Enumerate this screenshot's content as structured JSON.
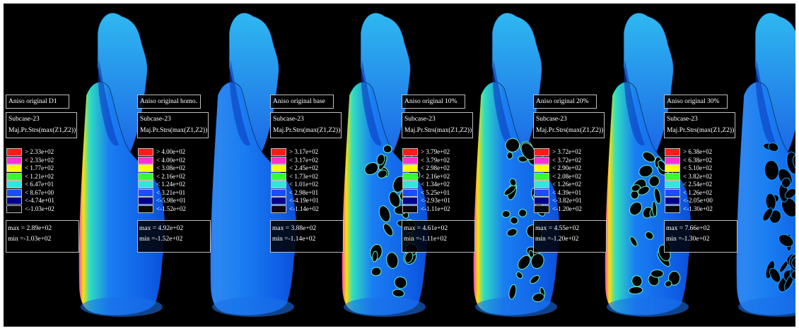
{
  "swatch_colors": [
    "#ff1a1a",
    "#ff33cc",
    "#ffff00",
    "#33ff33",
    "#33e6d9",
    "#1a4dff",
    "#00008c",
    "#0a0a0a"
  ],
  "panels": [
    {
      "title": "Aniso original D1",
      "subcase": "Subcase-23",
      "quantity": "Maj.Pr.Strs(max(Z1,Z2))",
      "legend": [
        "> 2.33e+02",
        "< 2.33e+02",
        "< 1.77e+02",
        "< 1.21e+02",
        "< 6.47e+01",
        "< 8.67e+00",
        "<-4.74e+01",
        "<-1.03e+02"
      ],
      "max": "max = 2.89e+02",
      "min": "min =-1.03e+02"
    },
    {
      "title": "Aniso original homo.",
      "subcase": "Subcase-23",
      "quantity": "Maj.Pr.Strs(max(Z1,Z2))",
      "legend": [
        "> 4.00e+02",
        "< 4.00e+02",
        "< 3.08e+02",
        "< 2.16e+02",
        "< 1.24e+02",
        "< 3.21e+01",
        "<-5.98e+01",
        "<-1.52e+02"
      ],
      "max": "max = 4.92e+02",
      "min": "min =-1.52e+02"
    },
    {
      "title": "Aniso original base",
      "subcase": "Subcase-23",
      "quantity": "Maj.Pr.Strs(max(Z1,Z2))",
      "legend": [
        "> 3.17e+02",
        "< 3.17e+02",
        "< 2.45e+02",
        "< 1.73e+02",
        "< 1.01e+02",
        "< 2.98e+01",
        "<-4.19e+01",
        "<-1.14e+02"
      ],
      "max": "max = 3.88e+02",
      "min": "min =-1.14e+02"
    },
    {
      "title": "Aniso original 10%",
      "subcase": "Subcase-23",
      "quantity": "Maj.Pr.Strs(max(Z1,Z2))",
      "legend": [
        "> 3.79e+02",
        "< 3.79e+02",
        "< 2.98e+02",
        "< 2.16e+02",
        "< 1.34e+02",
        "< 5.25e+01",
        "<-2.93e+01",
        "<-1.11e+02"
      ],
      "max": "max = 4.61e+02",
      "min": "min =-1.11e+02"
    },
    {
      "title": "Aniso original 20%",
      "subcase": "Subcase-23",
      "quantity": "Maj.Pr.Strs(max(Z1,Z2))",
      "legend": [
        "> 3.72e+02",
        "< 3.72e+02",
        "< 2.90e+02",
        "< 2.08e+02",
        "< 1.26e+02",
        "< 4.39e+01",
        "<-3.82e+01",
        "<-1.20e+02"
      ],
      "max": "max = 4.55e+02",
      "min": "min =-1.20e+02"
    },
    {
      "title": "Aniso original 30%",
      "subcase": "Subcase-23",
      "quantity": "Maj.Pr.Strs(max(Z1,Z2))",
      "legend": [
        "> 6.38e+02",
        "< 6.38e+02",
        "< 5.10e+02",
        "< 3.82e+02",
        "< 2.54e+02",
        "< 1.26e+02",
        "<-2.05e+00",
        "<-1.30e+02"
      ],
      "max": "max = 7.66e+02",
      "min": "min =-1.30e+02"
    }
  ]
}
